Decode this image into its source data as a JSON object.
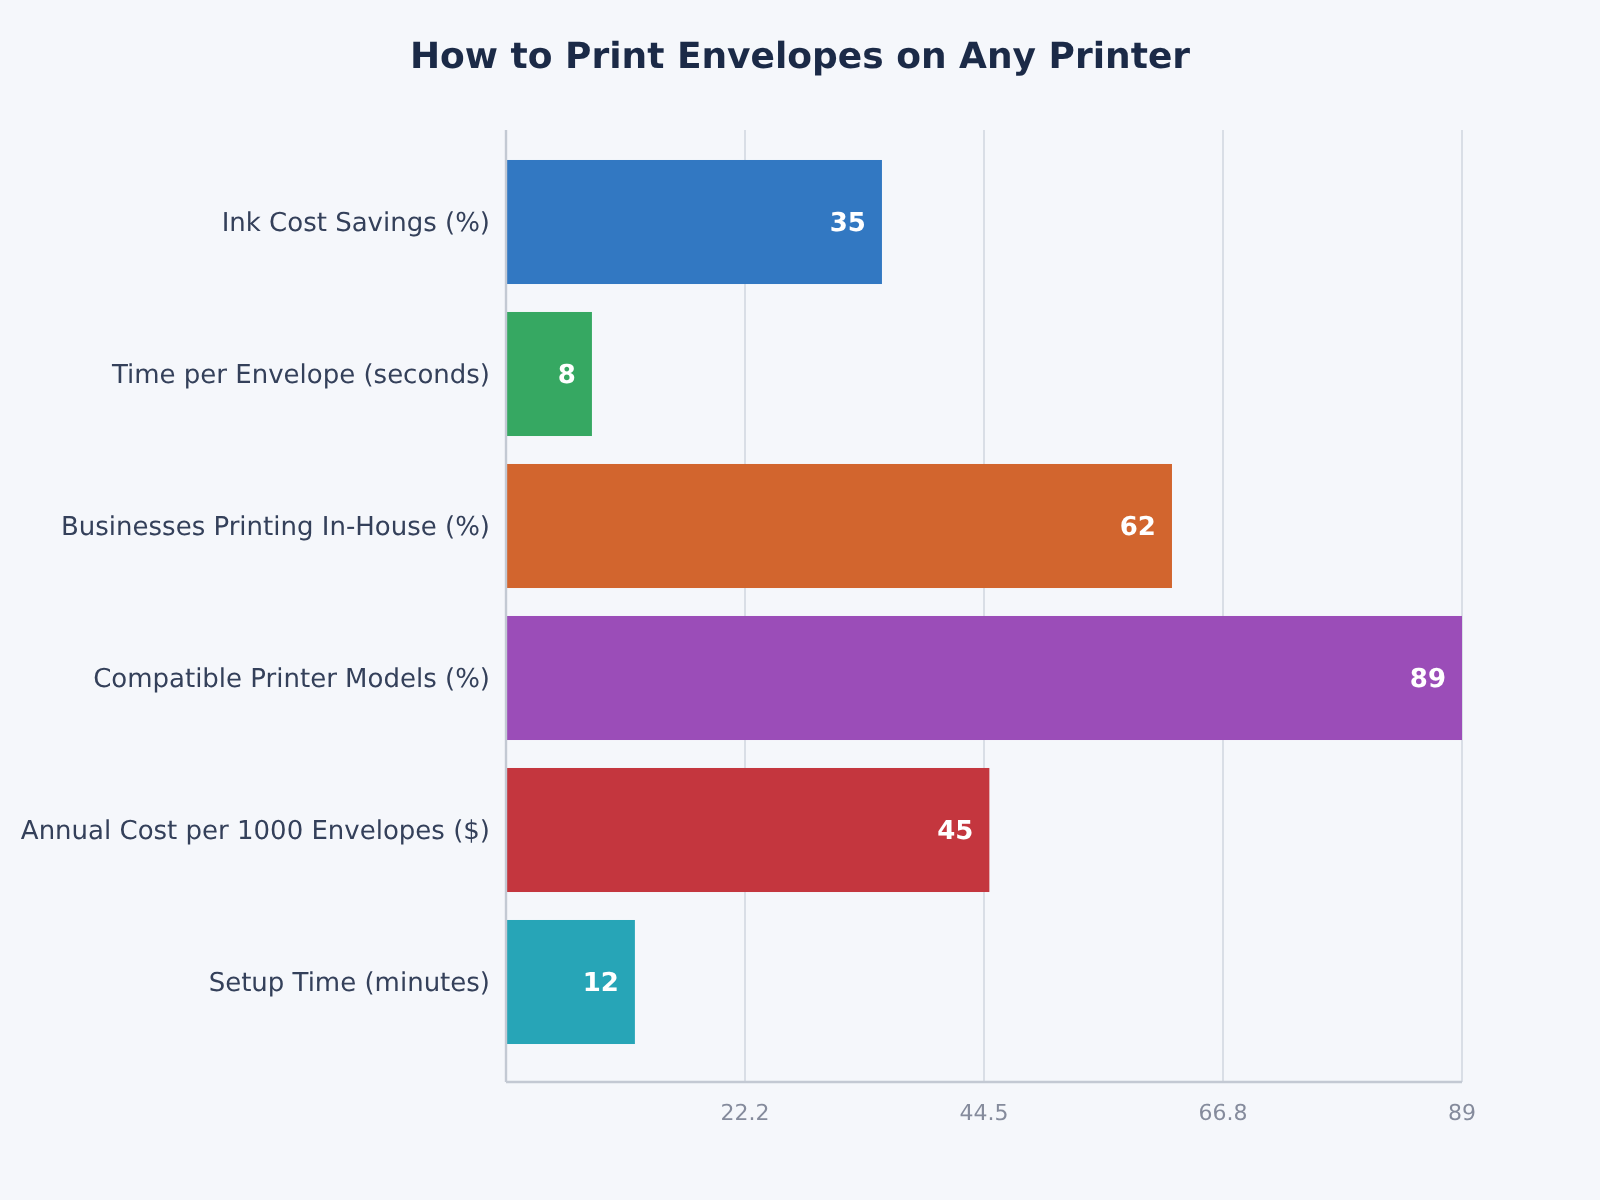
{
  "chart_data": {
    "type": "bar",
    "orientation": "horizontal",
    "title": "How to Print Envelopes on Any Printer",
    "categories": [
      "Ink Cost Savings (%)",
      "Time per Envelope (seconds)",
      "Businesses Printing In-House (%)",
      "Compatible Printer Models (%)",
      "Annual Cost per 1000 Envelopes ($)",
      "Setup Time (minutes)"
    ],
    "values": [
      35,
      8,
      62,
      89,
      45,
      12
    ],
    "colors": [
      "#3278c2",
      "#36a862",
      "#d2652e",
      "#9b4db8",
      "#c4363e",
      "#27a5b7"
    ],
    "xlim": [
      0,
      89
    ],
    "xticks": [
      {
        "value": 22.25,
        "label": "22.2"
      },
      44.5,
      {
        "value": 66.75,
        "label": "66.8"
      },
      89
    ],
    "grid": "x",
    "data_labels": true
  }
}
